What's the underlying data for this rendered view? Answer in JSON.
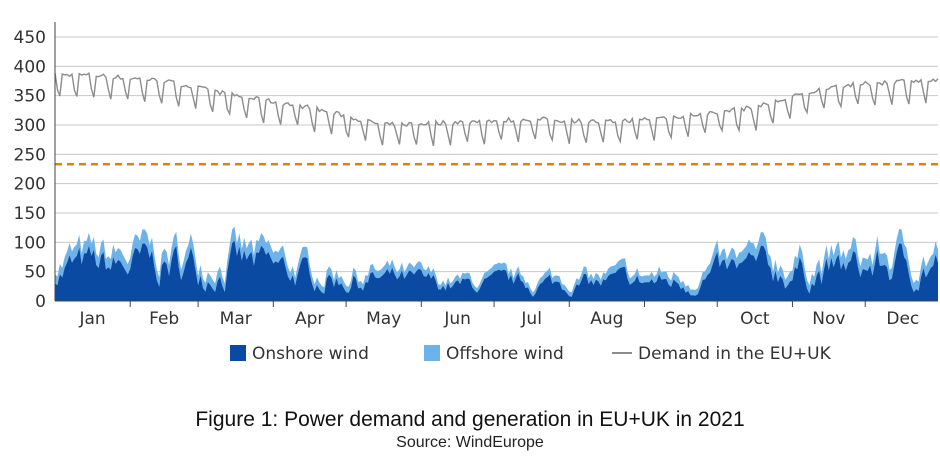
{
  "chart_data": {
    "type": "area",
    "title": "Figure 1: Power demand and generation in EU+UK in 2021",
    "subtitle": "Source: WindEurope",
    "xlabel": "",
    "ylabel": "",
    "ylim": [
      0,
      450
    ],
    "yticks": [
      0,
      50,
      100,
      150,
      200,
      250,
      300,
      350,
      400,
      450
    ],
    "months": [
      "Jan",
      "Feb",
      "Mar",
      "Apr",
      "May",
      "Jun",
      "Jul",
      "Aug",
      "Sep",
      "Oct",
      "Nov",
      "Dec"
    ],
    "grid": true,
    "legend_position": "bottom",
    "reference_line": {
      "value": 233,
      "color": "#d4880c",
      "style": "dashed"
    },
    "series": [
      {
        "name": "Onshore wind",
        "kind": "stacked-area",
        "color": "#0b4aa2",
        "monthly_values": [
          55,
          60,
          62,
          42,
          35,
          25,
          28,
          30,
          32,
          52,
          50,
          60
        ]
      },
      {
        "name": "Offshore wind",
        "kind": "stacked-area",
        "color": "#6db3ea",
        "monthly_values": [
          15,
          17,
          16,
          12,
          10,
          7,
          8,
          9,
          10,
          15,
          16,
          17
        ]
      },
      {
        "name": "Demand in the EU+UK",
        "kind": "line",
        "color": "#8c8c8c",
        "monthly_values": [
          385,
          375,
          350,
          330,
          300,
          305,
          310,
          305,
          315,
          330,
          365,
          375
        ]
      }
    ],
    "legend": [
      {
        "label": "Onshore wind",
        "color": "#0b4aa2",
        "shape": "square"
      },
      {
        "label": "Offshore wind",
        "color": "#6db3ea",
        "shape": "square"
      },
      {
        "label": "Demand in the EU+UK",
        "color": "#8c8c8c",
        "shape": "line"
      }
    ]
  }
}
